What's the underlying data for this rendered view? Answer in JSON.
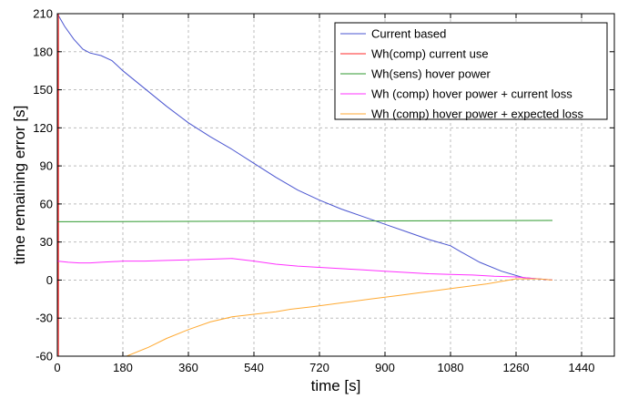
{
  "chart_data": {
    "type": "line",
    "title": "",
    "xlabel": "time [s]",
    "ylabel": "time remaining error [s]",
    "xlim": [
      0,
      1530
    ],
    "ylim": [
      -60,
      210
    ],
    "xticks": [
      0,
      180,
      360,
      540,
      720,
      900,
      1080,
      1260,
      1440
    ],
    "yticks": [
      -60,
      -30,
      0,
      30,
      60,
      90,
      120,
      150,
      180,
      210
    ],
    "grid": true,
    "legend_position": "top-right",
    "series": [
      {
        "name": "Current based",
        "color": "#4a55d0",
        "x": [
          0,
          20,
          45,
          70,
          90,
          120,
          150,
          180,
          240,
          300,
          360,
          420,
          480,
          540,
          600,
          660,
          720,
          780,
          840,
          900,
          960,
          1020,
          1080,
          1110,
          1160,
          1220,
          1280,
          1360
        ],
        "y": [
          210,
          200,
          190,
          182,
          179,
          177,
          173,
          165,
          151,
          137,
          124,
          113,
          103,
          92,
          81,
          71,
          63,
          56,
          50,
          44,
          38,
          32,
          27,
          22,
          14,
          7,
          2,
          0
        ]
      },
      {
        "name": "Wh(comp) current use",
        "color": "#ff2a2a",
        "x": [
          0,
          3,
          3
        ],
        "y": [
          -60,
          210,
          -60
        ]
      },
      {
        "name": "Wh(sens) hover power",
        "color": "#2f9a2f",
        "x": [
          0,
          1360
        ],
        "y": [
          46,
          47
        ]
      },
      {
        "name": "Wh (comp) hover power + current loss",
        "color": "#ff30ff",
        "x": [
          0,
          30,
          60,
          90,
          120,
          150,
          180,
          240,
          300,
          360,
          420,
          480,
          540,
          600,
          660,
          720,
          780,
          840,
          900,
          960,
          1020,
          1080,
          1140,
          1200,
          1260,
          1320,
          1360
        ],
        "y": [
          15,
          14,
          13.5,
          13.5,
          14,
          14.5,
          15,
          15,
          15.5,
          16,
          16.5,
          17,
          15,
          12.5,
          11,
          10,
          9,
          8,
          7,
          6,
          5,
          4.5,
          4,
          3,
          2.5,
          1,
          0
        ]
      },
      {
        "name": "Wh (comp) hover power + expected loss",
        "color": "#ffaa33",
        "x": [
          190,
          250,
          300,
          360,
          420,
          480,
          540,
          600,
          640,
          700,
          780,
          860,
          940,
          1020,
          1100,
          1180,
          1260,
          1320,
          1360
        ],
        "y": [
          -60,
          -53,
          -46,
          -39,
          -33,
          -29,
          -27,
          -25,
          -23,
          -21,
          -18,
          -15,
          -12,
          -9,
          -6,
          -3,
          1,
          1,
          0
        ]
      }
    ]
  }
}
